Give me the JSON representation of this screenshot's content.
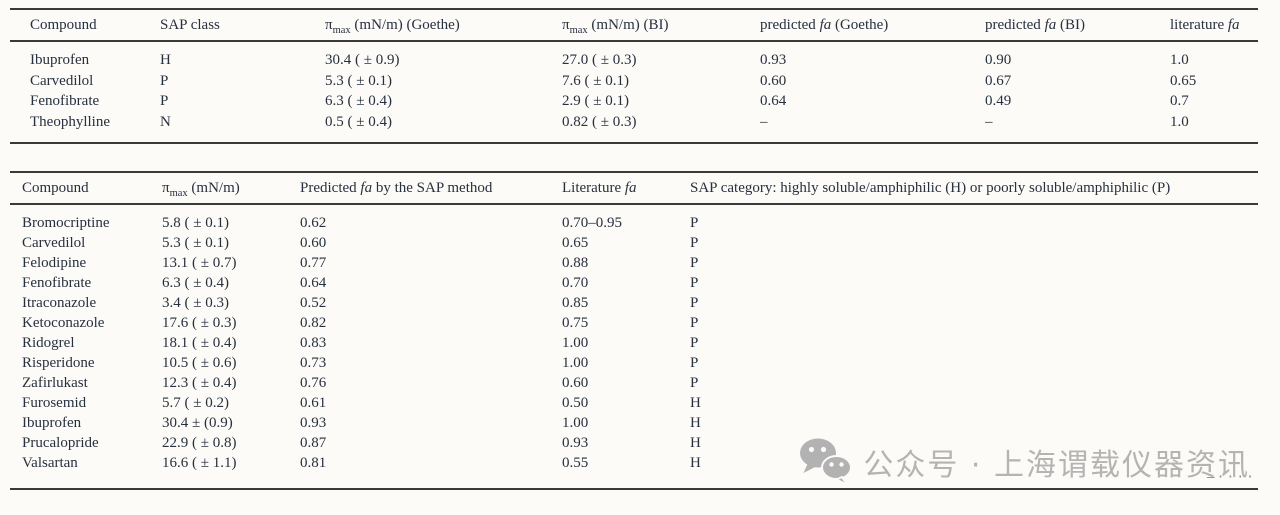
{
  "colors": {
    "background": "#fcfbf7",
    "text": "#27303f",
    "rule": "#3a3a3a",
    "watermark": "#b4b4b4"
  },
  "table1": {
    "headers": [
      [
        [
          "Compound",
          ""
        ]
      ],
      [
        [
          "SAP class",
          ""
        ]
      ],
      [
        [
          "π",
          ""
        ],
        [
          "max",
          "sub"
        ],
        [
          " (mN/m) (Goethe)",
          ""
        ]
      ],
      [
        [
          "π",
          ""
        ],
        [
          "max",
          "sub"
        ],
        [
          " (mN/m) (BI)",
          ""
        ]
      ],
      [
        [
          "predicted ",
          ""
        ],
        [
          "fa",
          "i"
        ],
        [
          " (Goethe)",
          ""
        ]
      ],
      [
        [
          "predicted ",
          ""
        ],
        [
          "fa",
          "i"
        ],
        [
          " (BI)",
          ""
        ]
      ],
      [
        [
          "literature ",
          ""
        ],
        [
          "fa",
          "i"
        ]
      ]
    ],
    "rows": [
      [
        "Ibuprofen",
        "H",
        "30.4 ( ± 0.9)",
        "27.0 ( ± 0.3)",
        "0.93",
        "0.90",
        "1.0"
      ],
      [
        "Carvedilol",
        "P",
        "5.3 ( ± 0.1)",
        "7.6 ( ± 0.1)",
        "0.60",
        "0.67",
        "0.65"
      ],
      [
        "Fenofibrate",
        "P",
        "6.3 ( ± 0.4)",
        "2.9 ( ± 0.1)",
        "0.64",
        "0.49",
        "0.7"
      ],
      [
        "Theophylline",
        "N",
        "0.5 ( ± 0.4)",
        "0.82 ( ± 0.3)",
        "–",
        "–",
        "1.0"
      ]
    ]
  },
  "table2": {
    "headers": [
      [
        [
          "Compound",
          ""
        ]
      ],
      [
        [
          "π",
          ""
        ],
        [
          "max",
          "sub"
        ],
        [
          " (mN/m)",
          ""
        ]
      ],
      [
        [
          "Predicted ",
          ""
        ],
        [
          "fa",
          "i"
        ],
        [
          " by the SAP method",
          ""
        ]
      ],
      [
        [
          "Literature ",
          ""
        ],
        [
          "fa",
          "i"
        ]
      ],
      [
        [
          "SAP category: highly soluble/amphiphilic (H) or poorly soluble/amphiphilic (P)",
          ""
        ]
      ]
    ],
    "rows": [
      [
        "Bromocriptine",
        "5.8 ( ± 0.1)",
        "0.62",
        "0.70–0.95",
        "P"
      ],
      [
        "Carvedilol",
        "5.3 ( ± 0.1)",
        "0.60",
        "0.65",
        "P"
      ],
      [
        "Felodipine",
        "13.1 ( ± 0.7)",
        "0.77",
        "0.88",
        "P"
      ],
      [
        "Fenofibrate",
        "6.3 ( ± 0.4)",
        "0.64",
        "0.70",
        "P"
      ],
      [
        "Itraconazole",
        "3.4 ( ± 0.3)",
        "0.52",
        "0.85",
        "P"
      ],
      [
        "Ketoconazole",
        "17.6 ( ± 0.3)",
        "0.82",
        "0.75",
        "P"
      ],
      [
        "Ridogrel",
        "18.1 ( ± 0.4)",
        "0.83",
        "1.00",
        "P"
      ],
      [
        "Risperidone",
        "10.5 ( ± 0.6)",
        "0.73",
        "1.00",
        "P"
      ],
      [
        "Zafirlukast",
        "12.3 ( ± 0.4)",
        "0.76",
        "0.60",
        "P"
      ],
      [
        "Furosemid",
        "5.7 ( ± 0.2)",
        "0.61",
        "0.50",
        "H"
      ],
      [
        "Ibuprofen",
        "30.4 ± (0.9)",
        "0.93",
        "1.00",
        "H"
      ],
      [
        "Prucalopride",
        "22.9 ( ± 0.8)",
        "0.87",
        "0.93",
        "H"
      ],
      [
        "Valsartan",
        "16.6 ( ± 1.1)",
        "0.81",
        "0.55",
        "H"
      ]
    ]
  },
  "watermark": {
    "icon": "wechat-icon",
    "text": "公众号 · 上海谓载仪器资讯"
  },
  "artifact": {
    "text": "–····"
  }
}
